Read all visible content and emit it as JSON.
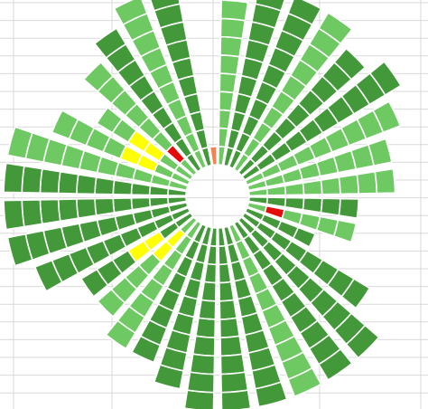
{
  "chart_data": {
    "type": "radial-bar",
    "n_sectors": 36,
    "rings_max": 10,
    "start_angle_deg": 0,
    "direction": "clockwise",
    "ring_counts": [
      9,
      10,
      10,
      10,
      9,
      10,
      9,
      8,
      8,
      6,
      6,
      4,
      8,
      10,
      10,
      10,
      10,
      10,
      10,
      9,
      8,
      8,
      7,
      7,
      9,
      10,
      10,
      10,
      10,
      8,
      6,
      8,
      9,
      10,
      10,
      1
    ],
    "shades": [
      "light",
      "dark",
      "dark",
      "light",
      "dark",
      "dark",
      "light",
      "light",
      "light",
      "dark",
      "light",
      "dark",
      "dark",
      "dark",
      "dark",
      "light",
      "dark",
      "dark",
      "dark",
      "dark",
      "dark",
      "light",
      "light",
      "dark",
      "dark",
      "dark",
      "dark",
      "dark",
      "light",
      "light",
      "light",
      "light",
      "dark",
      "light",
      "dark",
      "orange"
    ],
    "special_cells": [
      {
        "sector": 10,
        "rings": [
          1
        ],
        "color": "red"
      },
      {
        "sector": 22,
        "rings": [
          1,
          2
        ],
        "color": "yellow"
      },
      {
        "sector": 23,
        "rings": [
          2,
          3
        ],
        "color": "yellow"
      },
      {
        "sector": 29,
        "rings": [
          2,
          3
        ],
        "color": "yellow"
      },
      {
        "sector": 30,
        "rings": [
          2,
          3
        ],
        "color": "yellow"
      },
      {
        "sector": 31,
        "rings": [
          1
        ],
        "color": "red"
      }
    ],
    "colors": {
      "dark": "#43993a",
      "light": "#6ec962",
      "orange": "#f38357",
      "red": "#e40b0b",
      "yellow": "#ffff00",
      "gridline": "#d9d9d9",
      "cell_border": "#ffffff"
    }
  }
}
